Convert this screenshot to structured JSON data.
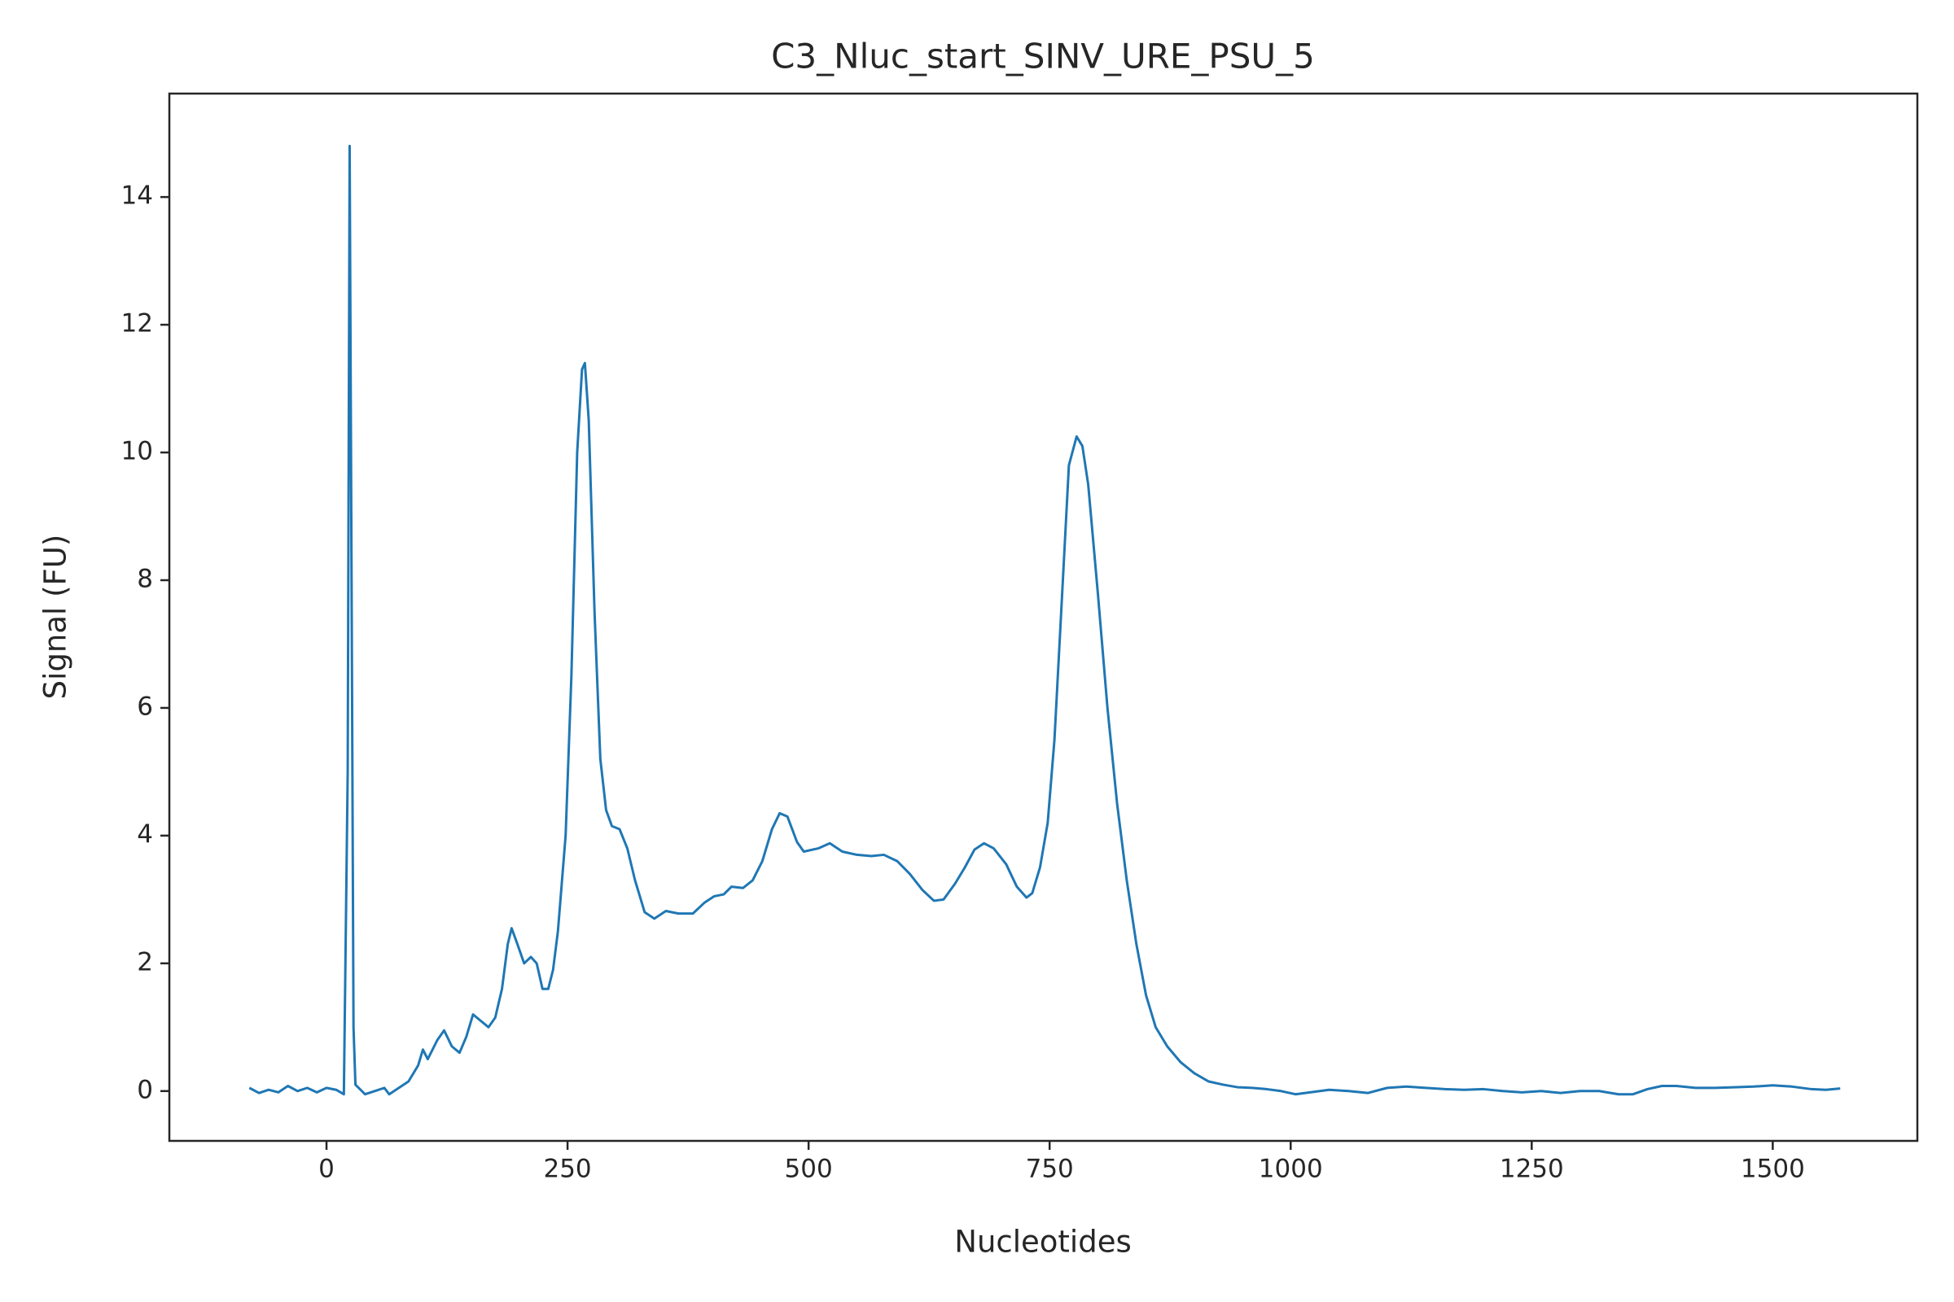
{
  "chart_data": {
    "type": "line",
    "title": "C3_Nluc_start_SINV_URE_PSU_5",
    "x_label": "Nucleotides",
    "y_label": "Signal (FU)",
    "xlim": [
      -163,
      1650
    ],
    "ylim": [
      -0.78,
      15.62
    ],
    "xticks": [
      0,
      250,
      500,
      750,
      1000,
      1250,
      1500
    ],
    "yticks": [
      0,
      2,
      4,
      6,
      8,
      10,
      12,
      14
    ],
    "grid": false,
    "series": [
      {
        "color": "#1f77b4",
        "x": [
          -80,
          -70,
          -60,
          -50,
          -40,
          -30,
          -20,
          -10,
          0,
          10,
          18,
          22,
          24,
          26,
          28,
          30,
          40,
          50,
          60,
          65,
          75,
          85,
          95,
          100,
          105,
          115,
          122,
          130,
          138,
          145,
          152,
          160,
          168,
          175,
          182,
          188,
          192,
          198,
          205,
          212,
          218,
          224,
          230,
          235,
          240,
          248,
          254,
          260,
          265,
          268,
          272,
          278,
          284,
          290,
          296,
          304,
          312,
          320,
          330,
          340,
          352,
          365,
          380,
          392,
          402,
          412,
          420,
          432,
          442,
          452,
          462,
          470,
          478,
          488,
          495,
          510,
          522,
          535,
          550,
          565,
          578,
          592,
          605,
          618,
          630,
          640,
          652,
          662,
          672,
          682,
          692,
          705,
          716,
          726,
          732,
          740,
          748,
          755,
          762,
          770,
          778,
          784,
          790,
          800,
          810,
          820,
          830,
          840,
          850,
          860,
          872,
          886,
          900,
          915,
          930,
          945,
          960,
          975,
          990,
          1005,
          1020,
          1040,
          1060,
          1080,
          1100,
          1120,
          1140,
          1160,
          1180,
          1200,
          1220,
          1240,
          1260,
          1280,
          1300,
          1320,
          1340,
          1355,
          1370,
          1385,
          1400,
          1420,
          1440,
          1460,
          1480,
          1500,
          1520,
          1540,
          1555,
          1570
        ],
        "values": [
          0.05,
          -0.03,
          0.02,
          -0.02,
          0.08,
          0.0,
          0.05,
          -0.02,
          0.05,
          0.02,
          -0.05,
          5,
          14.8,
          8,
          1,
          0.1,
          -0.05,
          0.0,
          0.05,
          -0.05,
          0.05,
          0.15,
          0.4,
          0.65,
          0.5,
          0.8,
          0.95,
          0.7,
          0.6,
          0.85,
          1.2,
          1.1,
          1.0,
          1.15,
          1.6,
          2.3,
          2.55,
          2.3,
          2.0,
          2.1,
          2.0,
          1.6,
          1.6,
          1.9,
          2.5,
          4.0,
          6.5,
          10.0,
          11.3,
          11.4,
          10.5,
          7.5,
          5.2,
          4.4,
          4.15,
          4.1,
          3.8,
          3.3,
          2.8,
          2.7,
          2.82,
          2.78,
          2.78,
          2.95,
          3.05,
          3.08,
          3.2,
          3.18,
          3.3,
          3.6,
          4.1,
          4.35,
          4.3,
          3.9,
          3.75,
          3.8,
          3.88,
          3.75,
          3.7,
          3.68,
          3.7,
          3.6,
          3.4,
          3.15,
          2.98,
          3.0,
          3.25,
          3.5,
          3.78,
          3.88,
          3.8,
          3.55,
          3.2,
          3.03,
          3.1,
          3.5,
          4.2,
          5.5,
          7.5,
          9.8,
          10.25,
          10.1,
          9.5,
          7.8,
          6.0,
          4.5,
          3.3,
          2.3,
          1.5,
          1.0,
          0.7,
          0.45,
          0.28,
          0.15,
          0.1,
          0.06,
          0.05,
          0.03,
          0.0,
          -0.05,
          -0.02,
          0.02,
          0.0,
          -0.03,
          0.05,
          0.07,
          0.05,
          0.03,
          0.02,
          0.03,
          0.0,
          -0.02,
          0.0,
          -0.03,
          0.0,
          0.0,
          -0.05,
          -0.05,
          0.03,
          0.08,
          0.08,
          0.05,
          0.05,
          0.06,
          0.07,
          0.09,
          0.07,
          0.03,
          0.02,
          0.04
        ]
      }
    ]
  }
}
